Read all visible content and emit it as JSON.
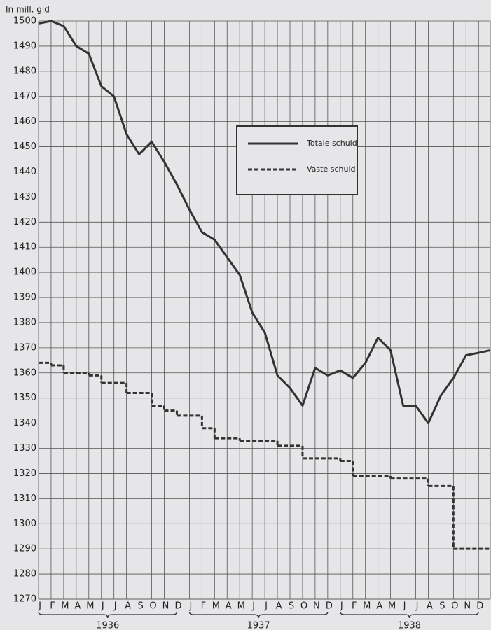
{
  "chart_data": {
    "type": "line",
    "y_axis_label": "In mill. gld",
    "categories": [
      "J",
      "F",
      "M",
      "A",
      "M",
      "J",
      "J",
      "A",
      "S",
      "O",
      "N",
      "D",
      "J",
      "F",
      "M",
      "A",
      "M",
      "J",
      "J",
      "A",
      "S",
      "O",
      "N",
      "D",
      "J",
      "F",
      "M",
      "A",
      "M",
      "J",
      "J",
      "A",
      "S",
      "O",
      "N",
      "D",
      null
    ],
    "year_labels": [
      "1936",
      "1937",
      "1938"
    ],
    "series": [
      {
        "name": "Totale schuld",
        "color": "#333333",
        "style": "solid",
        "values": [
          1499,
          1500,
          1498,
          1490,
          1487,
          1474,
          1470,
          1455,
          1447,
          1452,
          1444,
          1435,
          1425,
          1416,
          1413,
          1406,
          1399,
          1384,
          1376,
          1359,
          1354,
          1347,
          1362,
          1359,
          1361,
          1358,
          1364,
          1374,
          1369,
          1347,
          1347,
          1340,
          1351,
          1358,
          1367,
          1368,
          1369
        ]
      },
      {
        "name": "Vaste schuld",
        "color": "#333333",
        "style": "step-dashed",
        "values": [
          1364,
          1363,
          1360,
          1360,
          1359,
          1356,
          1356,
          1352,
          1352,
          1347,
          1345,
          1343,
          1343,
          1338,
          1334,
          1334,
          1333,
          1333,
          1333,
          1331,
          1331,
          1326,
          1326,
          1326,
          1325,
          1319,
          1319,
          1319,
          1318,
          1318,
          1318,
          1315,
          1315,
          1290,
          1290,
          1290,
          null
        ]
      }
    ],
    "ylim": [
      1270,
      1500
    ],
    "yticks": [
      1270,
      1280,
      1290,
      1300,
      1310,
      1320,
      1330,
      1340,
      1350,
      1360,
      1370,
      1380,
      1390,
      1400,
      1410,
      1420,
      1430,
      1440,
      1450,
      1460,
      1470,
      1480,
      1490,
      1500
    ],
    "grid": true
  }
}
